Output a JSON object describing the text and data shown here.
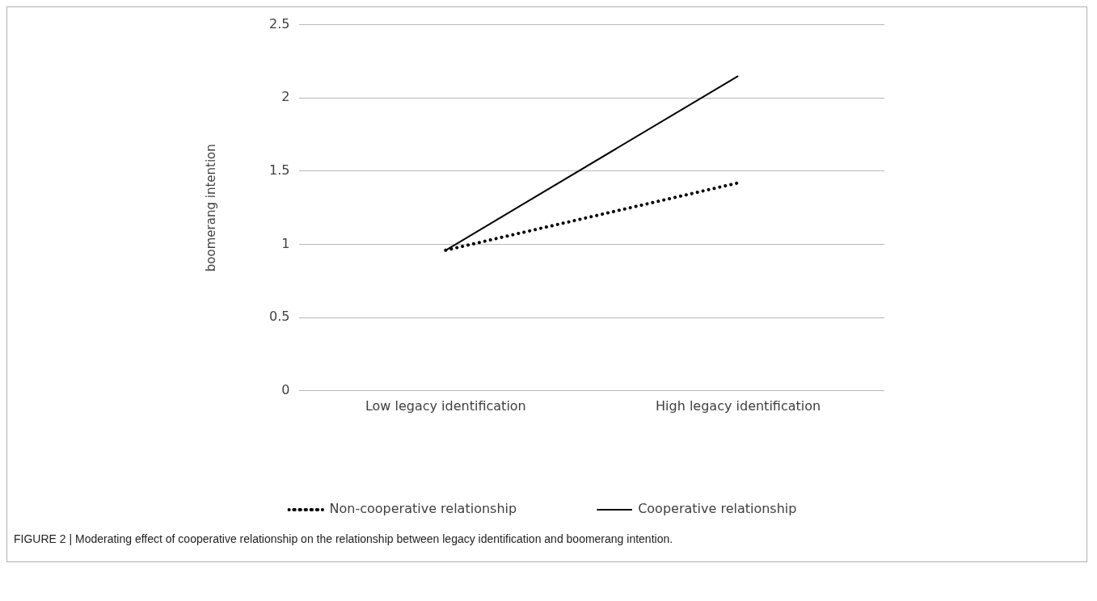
{
  "chart_data": {
    "type": "line",
    "ylabel": "boomerang intention",
    "categories": [
      "Low legacy identification",
      "High legacy identification"
    ],
    "series": [
      {
        "name": "Non-cooperative relationship",
        "color": "#000000",
        "values": [
          0.96,
          1.42
        ],
        "line_style": "dotted"
      },
      {
        "name": "Cooperative relationship",
        "color": "#000000",
        "values": [
          0.96,
          2.15
        ],
        "line_style": "solid"
      }
    ],
    "ylim": [
      0,
      2.5
    ],
    "yticks": [
      0,
      0.5,
      1,
      1.5,
      2,
      2.5
    ],
    "grid": "y",
    "legend": "bottom",
    "marker": "none",
    "annotations": [
      "FIGURE 2 | Moderating effect of cooperative relationship on the relationship between legacy identification and boomerang intention."
    ]
  }
}
